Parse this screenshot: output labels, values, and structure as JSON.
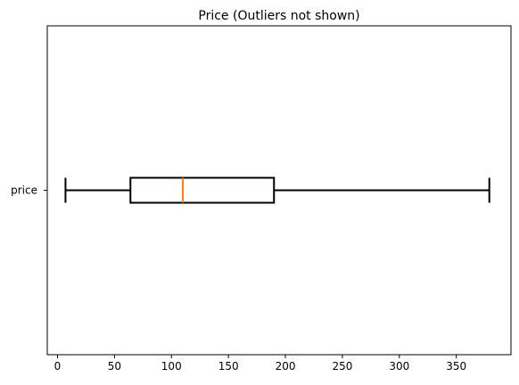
{
  "chart_data": {
    "type": "box",
    "title": "Price (Outliers not shown)",
    "xlabel": "",
    "ylabel": "",
    "xlim": [
      -9,
      398
    ],
    "xticks": [
      0,
      50,
      100,
      150,
      200,
      250,
      300,
      350
    ],
    "grid": false,
    "series": [
      {
        "name": "price",
        "whisker_low": 7,
        "q1": 64,
        "median": 110,
        "q3": 190,
        "whisker_high": 379
      }
    ]
  },
  "colors": {
    "median_line": "#ff7f0e",
    "box": "#000000"
  }
}
